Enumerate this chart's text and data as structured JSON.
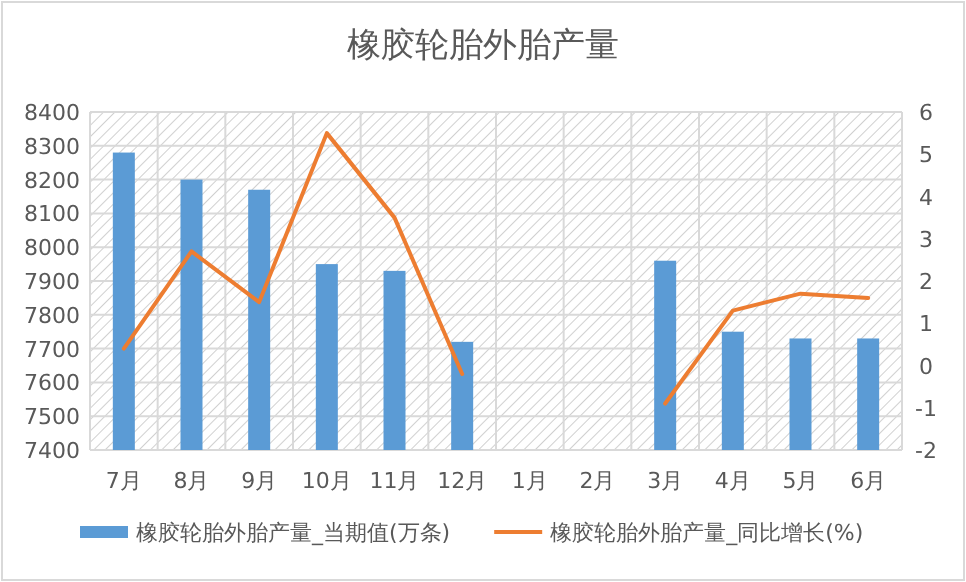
{
  "chart_data": {
    "type": "bar",
    "title": "橡胶轮胎外胎产量",
    "categories": [
      "7月",
      "8月",
      "9月",
      "10月",
      "11月",
      "12月",
      "1月",
      "2月",
      "3月",
      "4月",
      "5月",
      "6月"
    ],
    "series": [
      {
        "name": "橡胶轮胎外胎产量_当期值(万条)",
        "color": "#5b9bd5",
        "values": [
          8280,
          8200,
          8170,
          7950,
          7930,
          7720,
          null,
          null,
          7960,
          7750,
          7730,
          7730
        ]
      },
      {
        "name": "橡胶轮胎外胎产量_同比增长(%)",
        "type": "line",
        "axis": "y2",
        "color": "#ed7d31",
        "values": [
          0.4,
          2.7,
          1.5,
          5.5,
          3.5,
          -0.2,
          null,
          null,
          -0.9,
          1.3,
          1.7,
          1.6
        ]
      }
    ],
    "ylim": [
      7400,
      8400
    ],
    "yticks": [
      7400,
      7500,
      7600,
      7700,
      7800,
      7900,
      8000,
      8100,
      8200,
      8300,
      8400
    ],
    "y2lim": [
      -2,
      6
    ],
    "y2ticks": [
      -2,
      -1,
      0,
      1,
      2,
      3,
      4,
      5,
      6
    ],
    "grid": true,
    "legend": "bottom"
  }
}
